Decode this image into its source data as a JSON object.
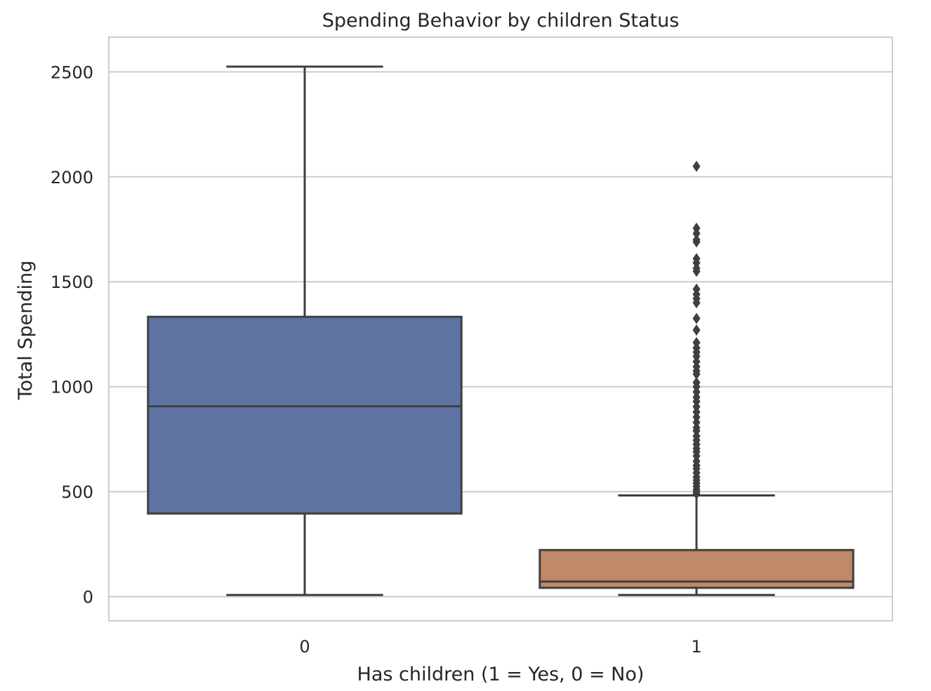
{
  "chart_data": {
    "type": "box",
    "title": "Spending Behavior by children Status",
    "xlabel": "Has children (1 = Yes, 0 = No)",
    "ylabel": "Total Spending",
    "categories": [
      "0",
      "1"
    ],
    "yticks": [
      "0",
      "500",
      "1000",
      "1500",
      "2000",
      "2500"
    ],
    "ylim": [
      -115,
      2665
    ],
    "grid": true,
    "boxes": [
      {
        "category": "0",
        "color": "#5f73a3",
        "whisker_low": 8,
        "q1": 396,
        "median": 907,
        "q3": 1333,
        "whisker_high": 2525,
        "outliers": []
      },
      {
        "category": "1",
        "color": "#c1886a",
        "whisker_low": 8,
        "q1": 42,
        "median": 72,
        "q3": 222,
        "whisker_high": 482,
        "outliers": [
          2050,
          1755,
          1730,
          1700,
          1690,
          1610,
          1590,
          1565,
          1550,
          1465,
          1440,
          1420,
          1400,
          1325,
          1270,
          1210,
          1185,
          1165,
          1145,
          1120,
          1095,
          1075,
          1060,
          1020,
          1000,
          975,
          950,
          930,
          905,
          880,
          855,
          830,
          805,
          790,
          765,
          745,
          725,
          705,
          690,
          670,
          645,
          625,
          610,
          590,
          570,
          555,
          540,
          525,
          510,
          500,
          490
        ]
      }
    ]
  }
}
